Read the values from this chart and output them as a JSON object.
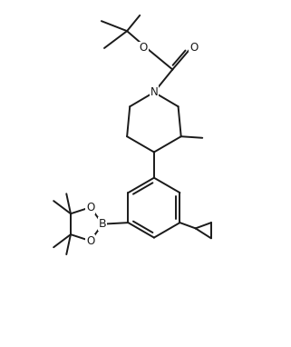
{
  "background_color": "#ffffff",
  "line_color": "#1a1a1a",
  "line_width": 1.4,
  "font_size": 8.5,
  "figsize": [
    3.21,
    3.82
  ],
  "dpi": 100,
  "xlim": [
    0,
    10
  ],
  "ylim": [
    0,
    12
  ]
}
